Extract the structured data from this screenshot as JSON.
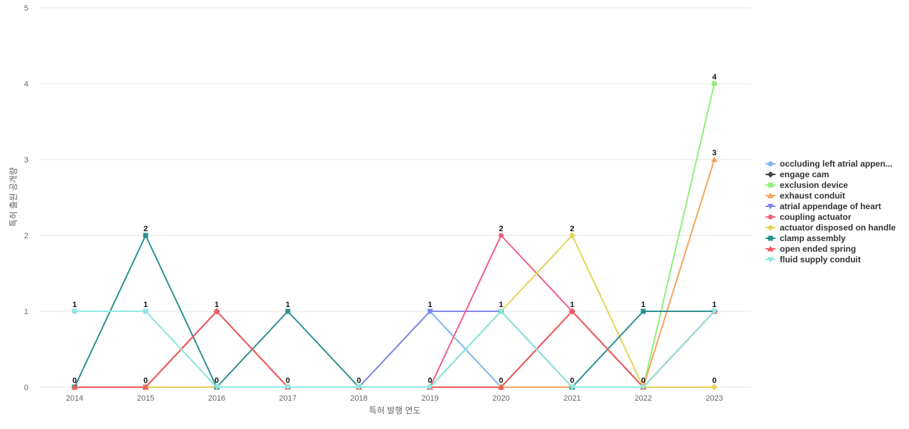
{
  "chart_data": {
    "type": "line",
    "title": "",
    "xlabel": "특허 발행 연도",
    "ylabel": "특허 출원 공개량",
    "x": [
      "2014",
      "2015",
      "2016",
      "2017",
      "2018",
      "2019",
      "2020",
      "2021",
      "2022",
      "2023"
    ],
    "ylim": [
      0,
      5
    ],
    "yticks": [
      0,
      1,
      2,
      3,
      4,
      5
    ],
    "grid": true,
    "legend_position": "right",
    "series": [
      {
        "name": "occluding left atrial appen...",
        "color": "#7cb5ec",
        "marker": "circle",
        "values": [
          1,
          1,
          0,
          0,
          0,
          1,
          0,
          0,
          0,
          1
        ]
      },
      {
        "name": "engage cam",
        "color": "#434348",
        "marker": "diamond",
        "values": [
          0,
          0,
          1,
          0,
          0,
          0,
          0,
          1,
          0,
          1
        ]
      },
      {
        "name": "exclusion device",
        "color": "#90ed7d",
        "marker": "square",
        "values": [
          0,
          0,
          0,
          0,
          0,
          0,
          0,
          0,
          0,
          4
        ]
      },
      {
        "name": "exhaust conduit",
        "color": "#f7a35c",
        "marker": "triangle",
        "values": [
          0,
          0,
          0,
          0,
          0,
          0,
          0,
          0,
          0,
          3
        ]
      },
      {
        "name": "atrial appendage of heart",
        "color": "#8085e9",
        "marker": "triangle-down",
        "values": [
          0,
          0,
          0,
          0,
          0,
          1,
          1,
          0,
          0,
          1
        ]
      },
      {
        "name": "coupling actuator",
        "color": "#f15c80",
        "marker": "circle",
        "values": [
          0,
          0,
          1,
          0,
          0,
          0,
          2,
          1,
          0,
          1
        ]
      },
      {
        "name": "actuator disposed on handle",
        "color": "#e4d354",
        "marker": "diamond",
        "values": [
          0,
          0,
          0,
          0,
          0,
          0,
          1,
          2,
          0,
          0
        ]
      },
      {
        "name": "clamp assembly",
        "color": "#2b908f",
        "marker": "square",
        "values": [
          0,
          2,
          0,
          1,
          0,
          0,
          1,
          0,
          1,
          1
        ]
      },
      {
        "name": "open ended spring",
        "color": "#f45b5b",
        "marker": "triangle",
        "values": [
          0,
          0,
          1,
          0,
          0,
          0,
          0,
          1,
          0,
          1
        ]
      },
      {
        "name": "fluid supply conduit",
        "color": "#91e8e1",
        "marker": "triangle-down",
        "values": [
          1,
          1,
          0,
          0,
          0,
          0,
          1,
          0,
          0,
          1
        ]
      }
    ],
    "data_labels": [
      {
        "x": "2014",
        "top": "1",
        "bottom": "0"
      },
      {
        "x": "2015",
        "top": "2",
        "middle": "1",
        "bottom": "0"
      },
      {
        "x": "2016",
        "top": "1",
        "bottom": "0"
      },
      {
        "x": "2017",
        "top": "1",
        "bottom": "0"
      },
      {
        "x": "2018",
        "bottom": "0"
      },
      {
        "x": "2019",
        "top": "1",
        "bottom": "0"
      },
      {
        "x": "2020",
        "top": "2",
        "middle": "1",
        "bottom": "0"
      },
      {
        "x": "2021",
        "top": "2",
        "middle": "1",
        "bottom": "0"
      },
      {
        "x": "2022",
        "top": "1",
        "bottom": "0"
      },
      {
        "x": "2023",
        "top": "4",
        "middle": "3",
        "lower": "1",
        "bottom": "0"
      }
    ]
  }
}
